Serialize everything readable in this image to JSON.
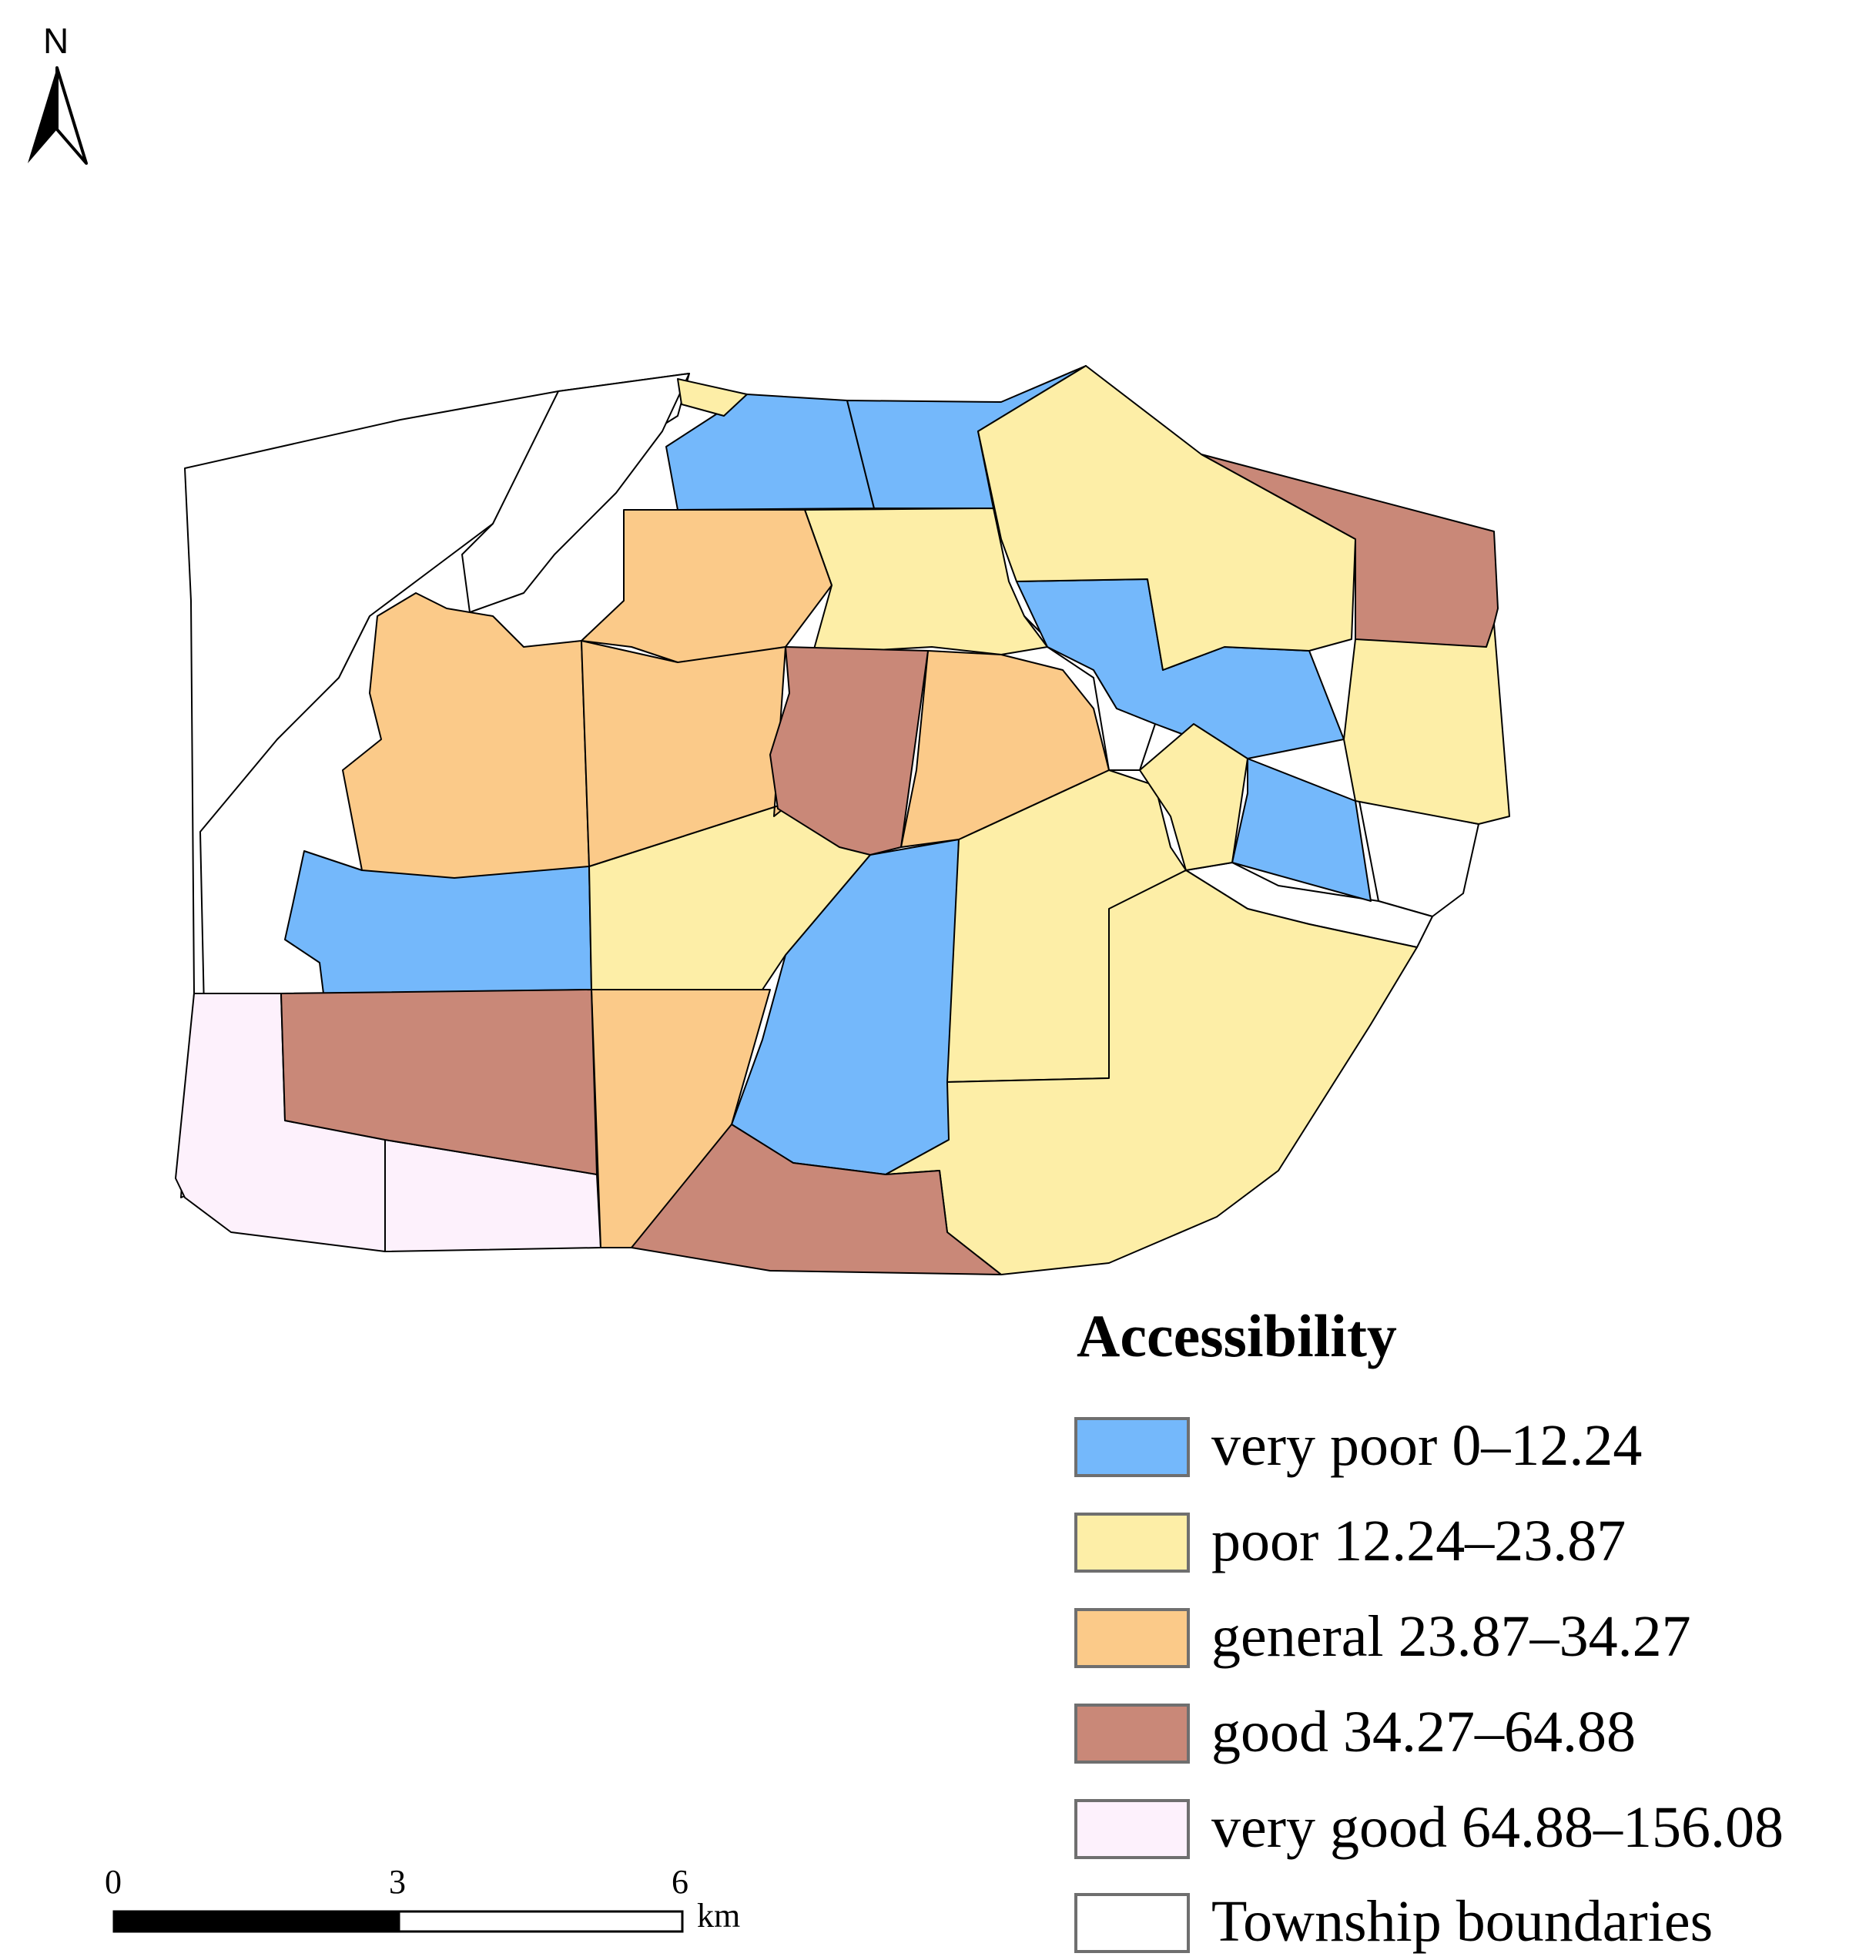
{
  "north_arrow": {
    "label": "N"
  },
  "legend": {
    "title": "Accessibility",
    "items": [
      {
        "key": "very_poor",
        "label": "very poor 0–12.24",
        "color": "#74b8fb"
      },
      {
        "key": "poor",
        "label": "poor 12.24–23.87",
        "color": "#fdeea7"
      },
      {
        "key": "general",
        "label": "general 23.87–34.27",
        "color": "#fbca89"
      },
      {
        "key": "good",
        "label": "good 34.27–64.88",
        "color": "#c98878"
      },
      {
        "key": "very_good",
        "label": "very good 64.88–156.08",
        "color": "#fdf1fc"
      },
      {
        "key": "township",
        "label": "Township boundaries",
        "color": "#ffffff"
      }
    ]
  },
  "scale_bar": {
    "ticks": [
      "0",
      "3",
      "6"
    ],
    "unit": "km"
  }
}
